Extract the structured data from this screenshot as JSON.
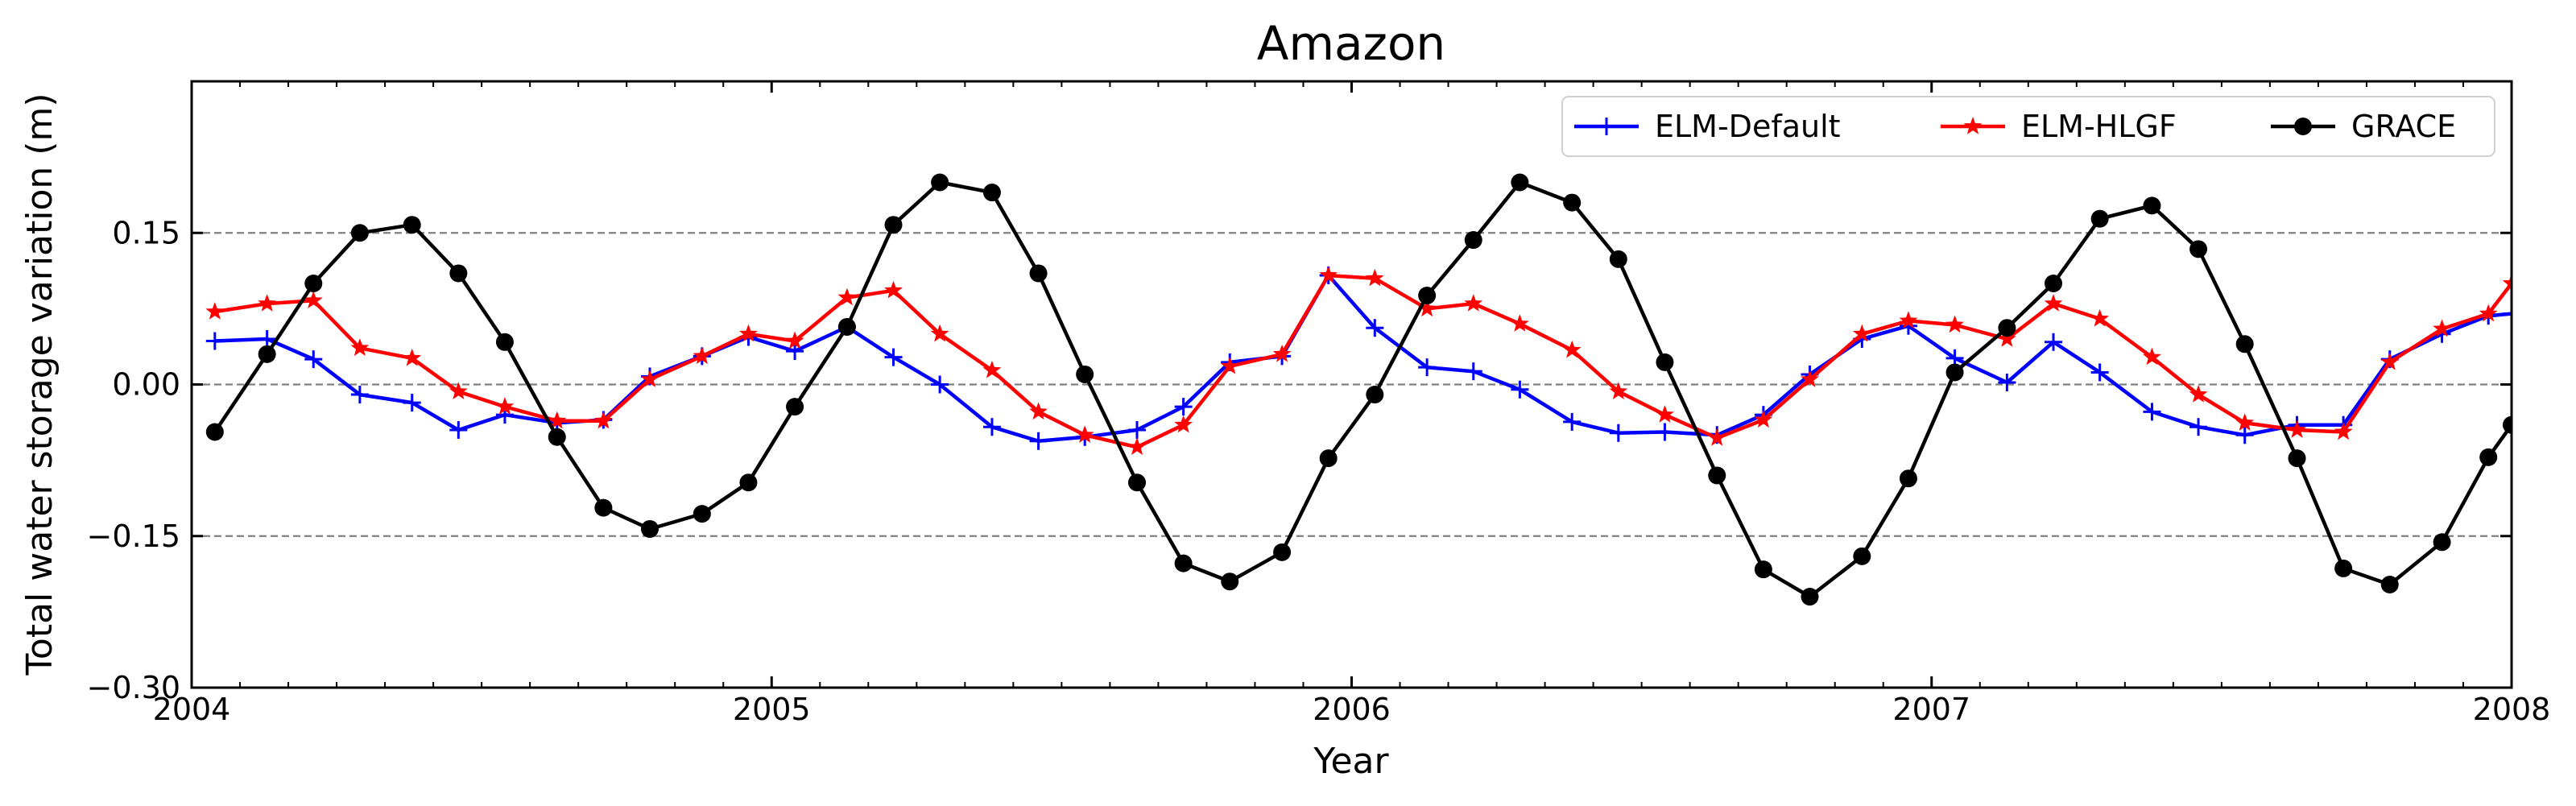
{
  "chart_data": {
    "type": "line",
    "title": "Amazon",
    "xlabel": "Year",
    "ylabel": "Total water storage variation (m)",
    "xlim": [
      2004,
      2008
    ],
    "ylim": [
      -0.3,
      0.3
    ],
    "xticks": [
      2004,
      2005,
      2006,
      2007,
      2008
    ],
    "xtick_labels": [
      "2004",
      "2005",
      "2006",
      "2007",
      "2008"
    ],
    "yticks": [
      -0.3,
      -0.15,
      0.0,
      0.15
    ],
    "ytick_labels": [
      "−0.30",
      "−0.15",
      "0.00",
      "0.15"
    ],
    "hlines": [
      -0.15,
      0.0,
      0.15
    ],
    "grid": false,
    "legend_position": "top-right",
    "series": [
      {
        "name": "ELM-Default",
        "color": "#0000ff",
        "marker": "plus",
        "x": [
          2004.04,
          2004.13,
          2004.21,
          2004.29,
          2004.38,
          2004.46,
          2004.54,
          2004.63,
          2004.71,
          2004.79,
          2004.88,
          2004.96,
          2005.04,
          2005.13,
          2005.21,
          2005.29,
          2005.38,
          2005.46,
          2005.54,
          2005.63,
          2005.71,
          2005.79,
          2005.88,
          2005.96,
          2006.04,
          2006.13,
          2006.21,
          2006.29,
          2006.38,
          2006.46,
          2006.54,
          2006.63,
          2006.71,
          2006.79,
          2006.88,
          2006.96,
          2007.04,
          2007.13,
          2007.21,
          2007.29,
          2007.38,
          2007.46,
          2007.54,
          2007.63,
          2007.71,
          2007.79,
          2007.88,
          2007.96,
          2008.0
        ],
        "values": [
          0.043,
          0.045,
          0.025,
          -0.01,
          -0.018,
          -0.045,
          -0.03,
          -0.038,
          -0.035,
          0.008,
          0.028,
          0.047,
          0.033,
          0.057,
          0.027,
          0.0,
          -0.042,
          -0.056,
          -0.052,
          -0.045,
          -0.022,
          0.022,
          0.028,
          0.108,
          0.056,
          0.017,
          0.013,
          -0.005,
          -0.037,
          -0.048,
          -0.047,
          -0.05,
          -0.03,
          0.01,
          0.045,
          0.058,
          0.026,
          0.002,
          0.042,
          0.012,
          -0.027,
          -0.042,
          -0.05,
          -0.04,
          -0.04,
          0.025,
          0.05,
          0.068,
          0.07
        ]
      },
      {
        "name": "ELM-HLGF",
        "color": "#ff0000",
        "marker": "star",
        "x": [
          2004.04,
          2004.13,
          2004.21,
          2004.29,
          2004.38,
          2004.46,
          2004.54,
          2004.63,
          2004.71,
          2004.79,
          2004.88,
          2004.96,
          2005.04,
          2005.13,
          2005.21,
          2005.29,
          2005.38,
          2005.46,
          2005.54,
          2005.63,
          2005.71,
          2005.79,
          2005.88,
          2005.96,
          2006.04,
          2006.13,
          2006.21,
          2006.29,
          2006.38,
          2006.46,
          2006.54,
          2006.63,
          2006.71,
          2006.79,
          2006.88,
          2006.96,
          2007.04,
          2007.13,
          2007.21,
          2007.29,
          2007.38,
          2007.46,
          2007.54,
          2007.63,
          2007.71,
          2007.79,
          2007.88,
          2007.96,
          2008.0
        ],
        "values": [
          0.072,
          0.08,
          0.083,
          0.036,
          0.026,
          -0.007,
          -0.022,
          -0.036,
          -0.036,
          0.005,
          0.028,
          0.05,
          0.043,
          0.086,
          0.093,
          0.05,
          0.014,
          -0.027,
          -0.05,
          -0.062,
          -0.04,
          0.018,
          0.03,
          0.108,
          0.105,
          0.075,
          0.08,
          0.06,
          0.034,
          -0.007,
          -0.03,
          -0.053,
          -0.035,
          0.005,
          0.05,
          0.063,
          0.059,
          0.045,
          0.08,
          0.065,
          0.027,
          -0.01,
          -0.038,
          -0.045,
          -0.047,
          0.022,
          0.055,
          0.07,
          0.1
        ]
      },
      {
        "name": "GRACE",
        "color": "#000000",
        "marker": "circle",
        "x": [
          2004.04,
          2004.13,
          2004.21,
          2004.29,
          2004.38,
          2004.46,
          2004.54,
          2004.63,
          2004.71,
          2004.79,
          2004.88,
          2004.96,
          2005.04,
          2005.13,
          2005.21,
          2005.29,
          2005.38,
          2005.46,
          2005.54,
          2005.63,
          2005.71,
          2005.79,
          2005.88,
          2005.96,
          2006.04,
          2006.13,
          2006.21,
          2006.29,
          2006.38,
          2006.46,
          2006.54,
          2006.63,
          2006.71,
          2006.79,
          2006.88,
          2006.96,
          2007.04,
          2007.13,
          2007.21,
          2007.29,
          2007.38,
          2007.46,
          2007.54,
          2007.63,
          2007.71,
          2007.79,
          2007.88,
          2007.96,
          2008.0
        ],
        "values": [
          -0.047,
          0.03,
          0.1,
          0.15,
          0.158,
          0.11,
          0.042,
          -0.052,
          -0.122,
          -0.143,
          -0.128,
          -0.097,
          -0.022,
          0.057,
          0.158,
          0.2,
          0.19,
          0.11,
          0.01,
          -0.097,
          -0.177,
          -0.195,
          -0.166,
          -0.073,
          -0.01,
          0.088,
          0.143,
          0.2,
          0.18,
          0.124,
          0.022,
          -0.09,
          -0.183,
          -0.21,
          -0.17,
          -0.093,
          0.012,
          0.056,
          0.1,
          0.164,
          0.177,
          0.134,
          0.04,
          -0.073,
          -0.182,
          -0.198,
          -0.156,
          -0.072,
          -0.04
        ]
      }
    ]
  }
}
